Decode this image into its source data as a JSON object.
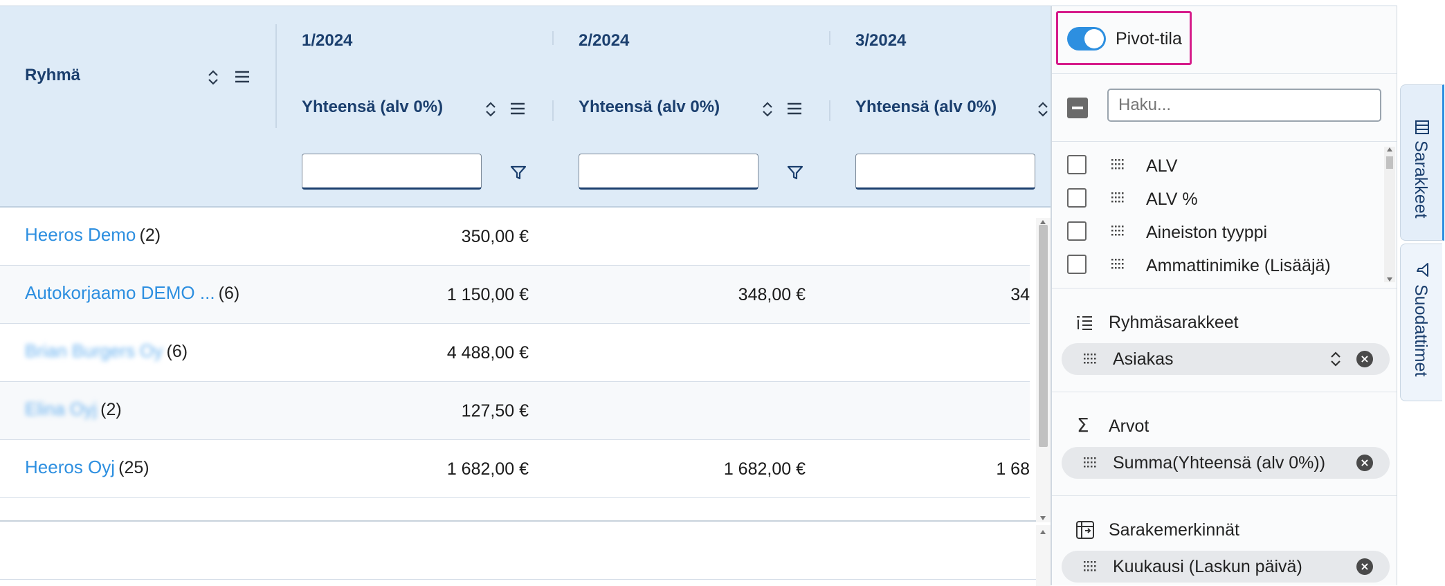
{
  "grid": {
    "group_header": "Ryhmä",
    "columns": [
      {
        "period": "1/2024",
        "header": "Yhteensä (alv 0%)"
      },
      {
        "period": "2/2024",
        "header": "Yhteensä (alv 0%)"
      },
      {
        "period": "3/2024",
        "header": "Yhteensä (alv 0%)"
      }
    ],
    "rows": [
      {
        "group": "Heeros Demo",
        "blurred": false,
        "count": "(2)",
        "values": [
          "350,00 €",
          "",
          ""
        ]
      },
      {
        "group": "Autokorjaamo DEMO ...",
        "blurred": false,
        "count": "(6)",
        "values": [
          "1 150,00 €",
          "348,00 €",
          "34"
        ]
      },
      {
        "group": "Brian Burgers Oy",
        "blurred": true,
        "count": "(6)",
        "values": [
          "4 488,00 €",
          "",
          ""
        ]
      },
      {
        "group": "Elina Oyj",
        "blurred": true,
        "count": "(2)",
        "values": [
          "127,50 €",
          "",
          ""
        ]
      },
      {
        "group": "Heeros Oyj",
        "blurred": false,
        "count": "(25)",
        "values": [
          "1 682,00 €",
          "1 682,00 €",
          "1 68"
        ]
      }
    ]
  },
  "panel": {
    "pivot_label": "Pivot-tila",
    "pivot_on": true,
    "search_placeholder": "Haku...",
    "column_list": [
      "ALV",
      "ALV %",
      "Aineiston tyyppi",
      "Ammattinimike (Lisääjä)"
    ],
    "row_groups_label": "Ryhmäsarakkeet",
    "row_groups": [
      "Asiakas"
    ],
    "values_label": "Arvot",
    "values": [
      "Summa(Yhteensä (alv 0%))"
    ],
    "column_labels_label": "Sarakemerkinnät",
    "column_labels": [
      "Kuukausi (Laskun päivä)"
    ]
  },
  "side_tabs": [
    "Sarakkeet",
    "Suodattimet"
  ],
  "colors": {
    "accent": "#2d8fe0",
    "header_bg": "#deebf7",
    "highlight": "#d61c8a",
    "toggle": "#2d8fe0"
  }
}
